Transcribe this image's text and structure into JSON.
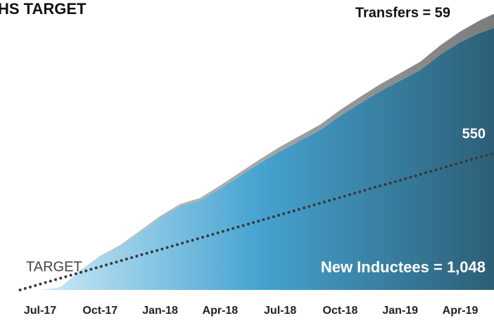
{
  "chart_data": {
    "type": "stacked-area",
    "title": "HS TARGET",
    "categories": [
      null,
      "Jul-17",
      null,
      null,
      "Oct-17",
      null,
      null,
      "Jan-18",
      null,
      null,
      "Apr-18",
      null,
      null,
      "Jul-18",
      null,
      null,
      "Oct-18",
      null,
      null,
      "Jan-19",
      null,
      null,
      "Apr-19",
      null,
      null
    ],
    "ylim": [
      0,
      1150
    ],
    "series": [
      {
        "label": "New Inductees = 1,048",
        "colors": [
          "#d8f1fc",
          "#46a3d0",
          "#2c5d74"
        ],
        "values": [
          0,
          0,
          10,
          75,
          131,
          173,
          229,
          285,
          332,
          355,
          402,
          453,
          503,
          550,
          592,
          634,
          690,
          740,
          788,
          830,
          872,
          933,
          983,
          1020,
          1048
        ]
      },
      {
        "label": "Transfers = 59",
        "colors": [
          "#d0d0d0",
          "#7a7b7c"
        ],
        "values": [
          0,
          0,
          0,
          2,
          4,
          5,
          6,
          8,
          9,
          10,
          12,
          14,
          16,
          18,
          20,
          22,
          24,
          26,
          28,
          30,
          33,
          37,
          42,
          50,
          59
        ]
      }
    ],
    "target": {
      "label": "TARGET",
      "end_label": "550",
      "color": "#3a3a3a",
      "values": [
        0,
        23,
        46,
        69,
        92,
        115,
        138,
        160,
        183,
        206,
        229,
        252,
        275,
        298,
        321,
        344,
        367,
        390,
        413,
        435,
        458,
        481,
        504,
        527,
        550
      ]
    }
  }
}
